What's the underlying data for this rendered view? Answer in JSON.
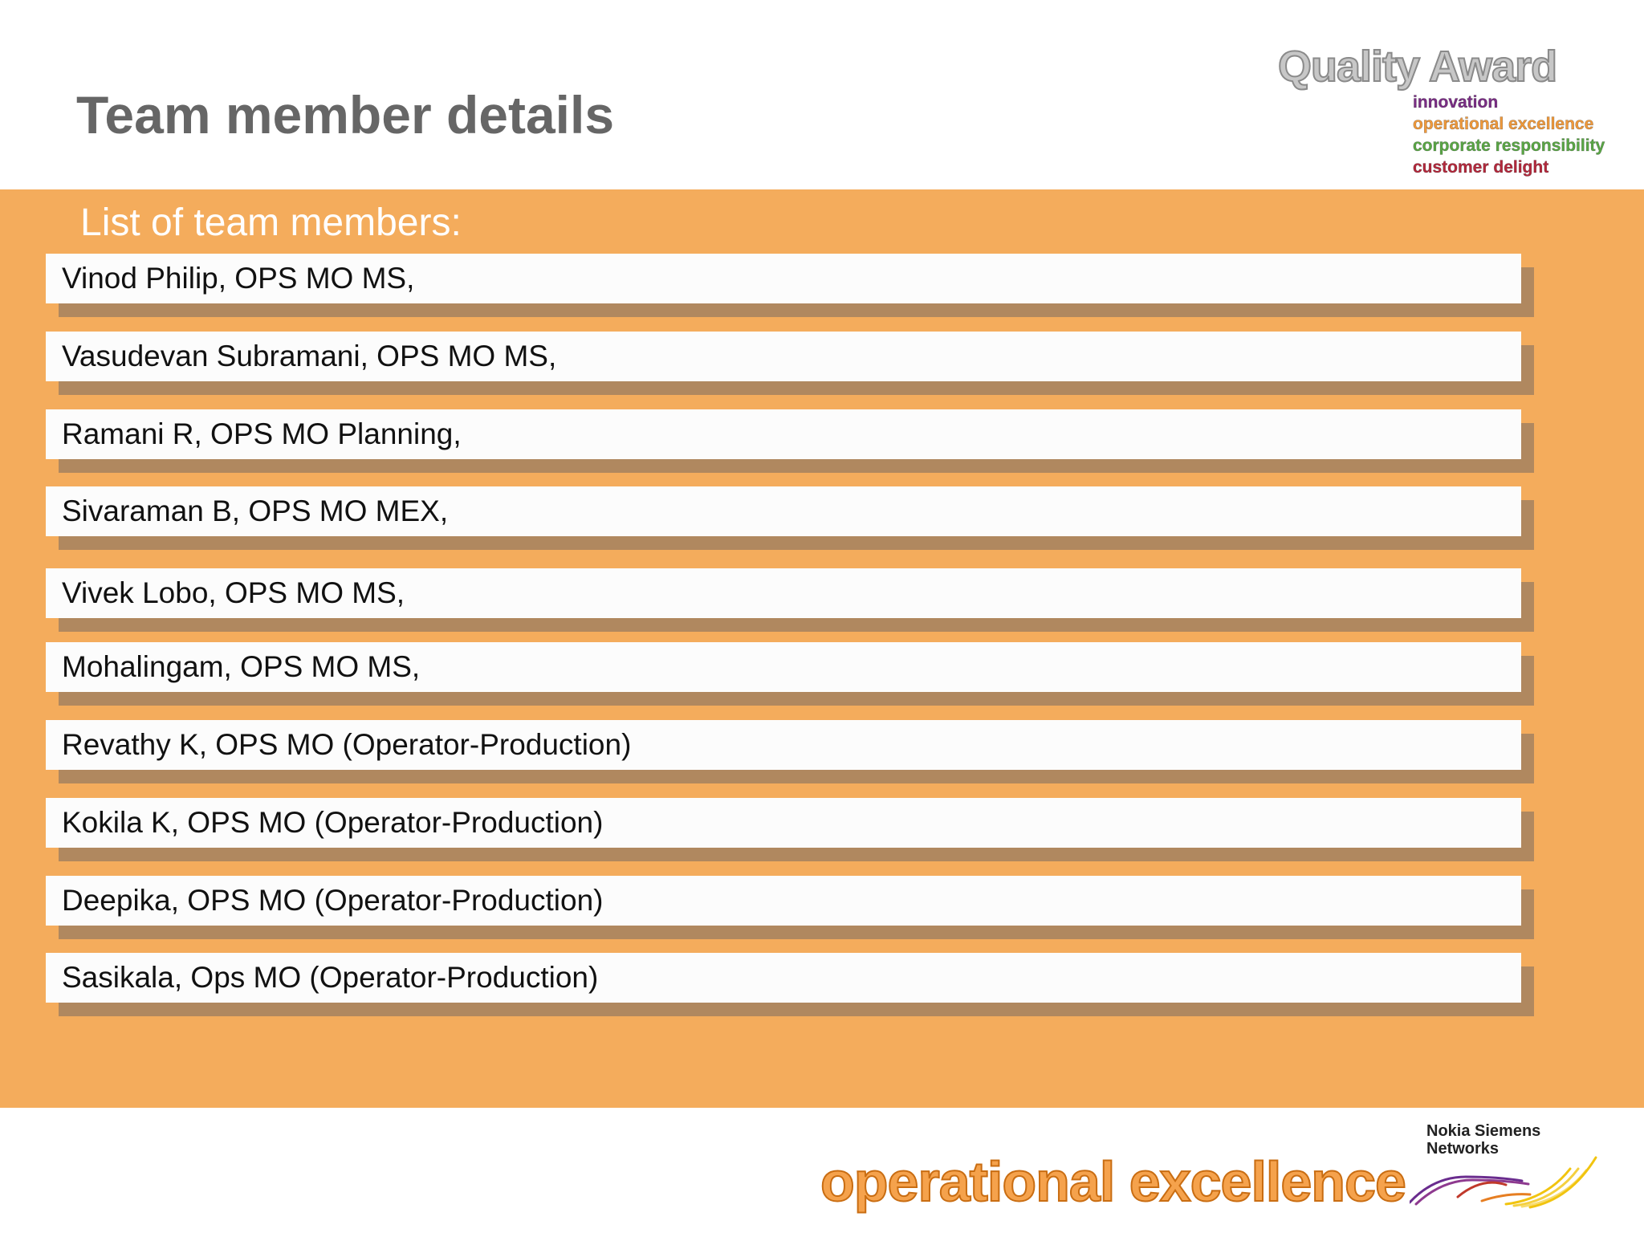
{
  "slide": {
    "title": "Team member details",
    "section_heading": "List of team members:"
  },
  "award_logo": {
    "title": "Quality Award",
    "lines": [
      {
        "text": "innovation",
        "color": "#7b2d86"
      },
      {
        "text": "operational excellence",
        "color": "#f29a3a"
      },
      {
        "text": "corporate responsibility",
        "color": "#5aa845"
      },
      {
        "text": "customer delight",
        "color": "#b5283c"
      }
    ]
  },
  "members": [
    "Vinod Philip, OPS MO MS,",
    "Vasudevan Subramani, OPS MO MS,",
    "Ramani R, OPS MO Planning,",
    "Sivaraman B, OPS MO MEX,",
    "Vivek Lobo, OPS MO MS,",
    "Mohalingam, OPS MO MS,",
    "Revathy K, OPS MO (Operator-Production)",
    "Kokila K, OPS MO (Operator-Production)",
    "Deepika, OPS MO (Operator-Production)",
    "Sasikala, Ops MO (Operator-Production)"
  ],
  "footer": {
    "brand_text": "operational excellence",
    "company_line1": "Nokia Siemens",
    "company_line2": "Networks"
  },
  "colors": {
    "band": "#f4ac5c",
    "row_shadow": "#b0885f",
    "title": "#666666",
    "brand_orange": "#f5a24c"
  }
}
